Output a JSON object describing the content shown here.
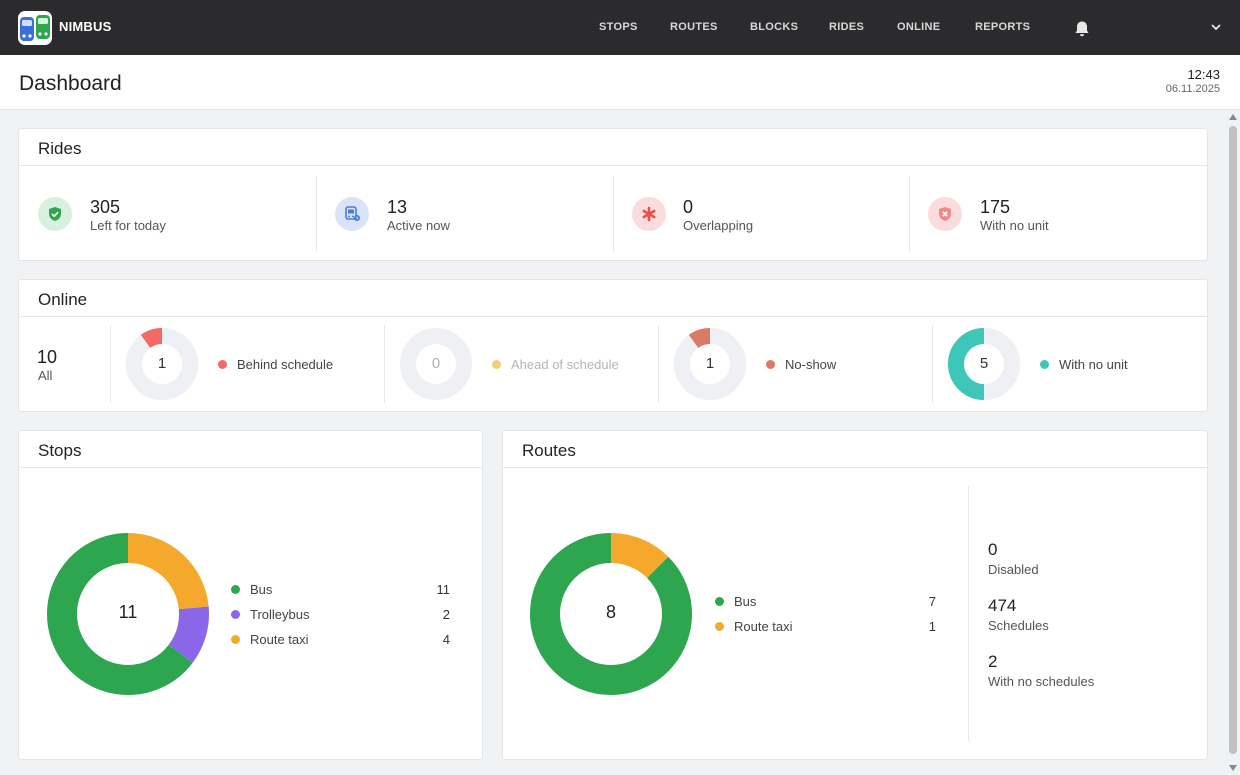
{
  "app": {
    "brand": "NIMBUS",
    "nav": [
      "STOPS",
      "ROUTES",
      "BLOCKS",
      "RIDES",
      "ONLINE",
      "REPORTS"
    ],
    "icons": {
      "logo": "nimbus-logo",
      "notifications": "bell-icon",
      "menu": "chevron-down-icon"
    }
  },
  "header": {
    "title": "Dashboard",
    "time": "12:43",
    "date": "06.11.2025"
  },
  "rides": {
    "title": "Rides",
    "stats": [
      {
        "value": "305",
        "label": "Left for today",
        "icon": "shield-check-icon",
        "color": "#2ea650"
      },
      {
        "value": "13",
        "label": "Active now",
        "icon": "bus-icon",
        "color": "#4a7be0"
      },
      {
        "value": "0",
        "label": "Overlapping",
        "icon": "asterisk-icon",
        "color": "#e8504d"
      },
      {
        "value": "175",
        "label": "With no unit",
        "icon": "x-shield-icon",
        "color": "#e8504d"
      }
    ]
  },
  "online": {
    "title": "Online",
    "all_value": "10",
    "all_label": "All",
    "items": [
      {
        "value": "1",
        "label": "Behind schedule",
        "color": "#f26a63",
        "fraction": 0.1
      },
      {
        "value": "0",
        "label": "Ahead of schedule",
        "color": "#f2cf72",
        "fraction": 0
      },
      {
        "value": "1",
        "label": "No-show",
        "color": "#d97b66",
        "fraction": 0.1
      },
      {
        "value": "5",
        "label": "With no unit",
        "color": "#3ec6b9",
        "fraction": 0.5
      }
    ]
  },
  "stops": {
    "title": "Stops",
    "total": "11",
    "items": [
      {
        "label": "Bus",
        "value": 11,
        "color": "#2ea650"
      },
      {
        "label": "Trolleybus",
        "value": 2,
        "color": "#8a67e8"
      },
      {
        "label": "Route taxi",
        "value": 4,
        "color": "#f5a92c"
      }
    ]
  },
  "routes": {
    "title": "Routes",
    "total": "8",
    "items": [
      {
        "label": "Bus",
        "value": 7,
        "color": "#2ea650"
      },
      {
        "label": "Route taxi",
        "value": 1,
        "color": "#f5a92c"
      }
    ],
    "side_stats": [
      {
        "value": "0",
        "label": "Disabled"
      },
      {
        "value": "474",
        "label": "Schedules"
      },
      {
        "value": "2",
        "label": "With no schedules"
      }
    ]
  }
}
